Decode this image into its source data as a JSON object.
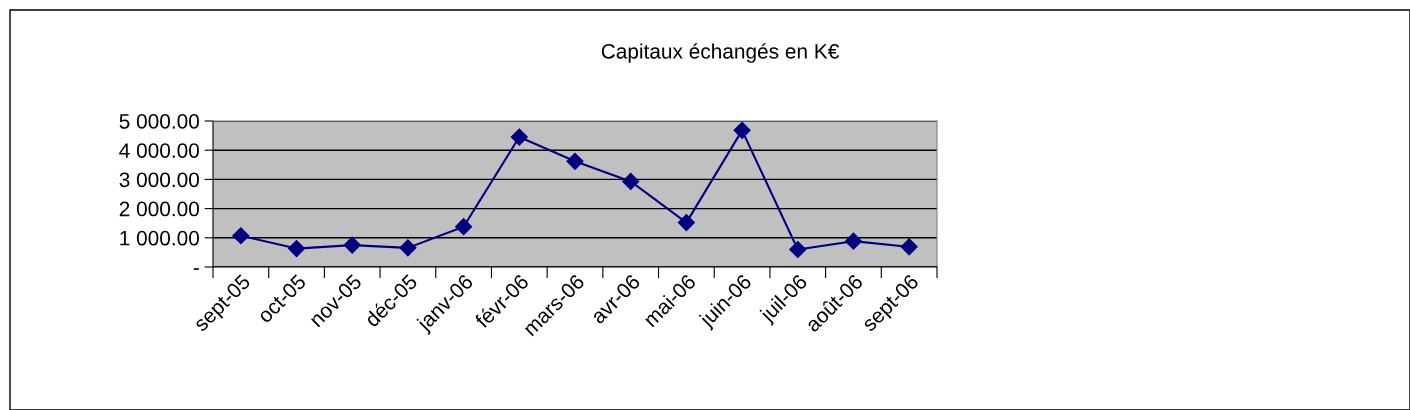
{
  "chart_data": {
    "type": "line",
    "title": "Capitaux échangés en K€",
    "categories": [
      "sept-05",
      "oct-05",
      "nov-05",
      "déc-05",
      "janv-06",
      "févr-06",
      "mars-06",
      "avr-06",
      "mai-06",
      "juin-06",
      "juil-06",
      "août-06",
      "sept-06"
    ],
    "series": [
      {
        "color": "#000080",
        "values": [
          1070,
          630,
          750,
          655,
          1380,
          4450,
          3620,
          2930,
          1520,
          4680,
          600,
          885,
          690
        ]
      }
    ],
    "ylim": [
      0,
      5000
    ],
    "yticks": [
      {
        "value": 0,
        "label": "-"
      },
      {
        "value": 1000,
        "label": "1 000.00"
      },
      {
        "value": 2000,
        "label": "2 000.00"
      },
      {
        "value": 3000,
        "label": "3 000.00"
      },
      {
        "value": 4000,
        "label": "4 000.00"
      },
      {
        "value": 5000,
        "label": "5 000.00"
      }
    ],
    "grid": "y",
    "marker": "diamond",
    "line_style": "solid",
    "legend": false
  }
}
